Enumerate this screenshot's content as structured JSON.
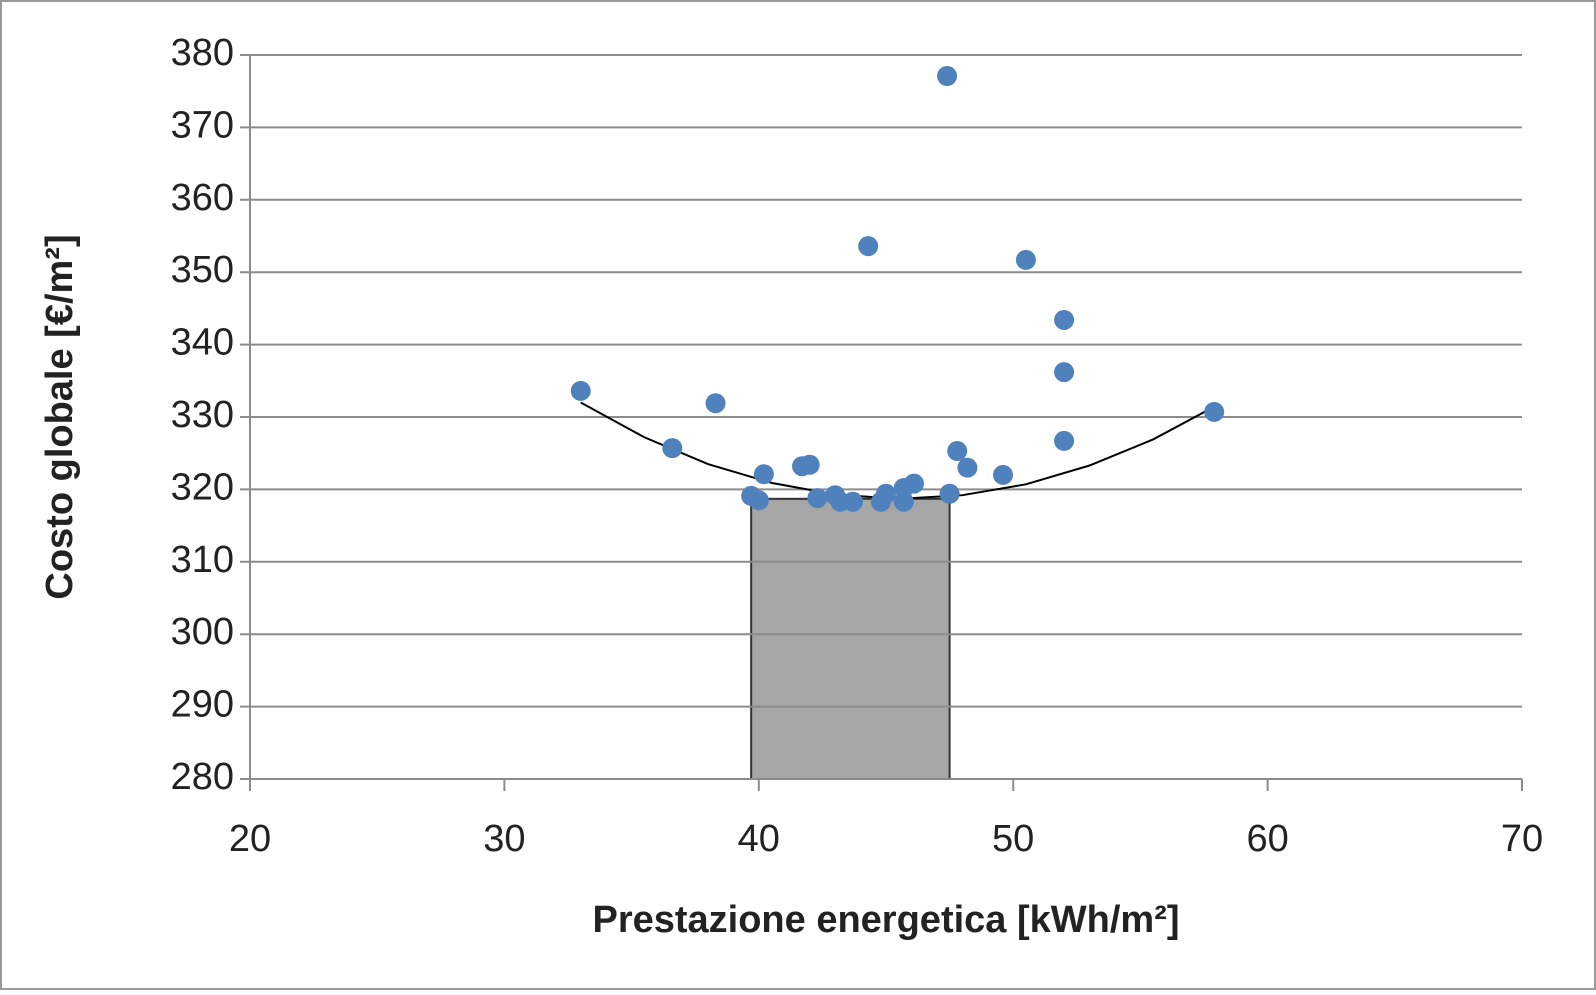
{
  "chart_data": {
    "type": "scatter",
    "x_label": "Prestazione energetica [kWh/m²]",
    "y_label": "Costo globale [€/m²]",
    "x": [
      33.0,
      36.6,
      38.3,
      39.7,
      40.0,
      40.2,
      41.7,
      42.0,
      42.3,
      43.0,
      43.2,
      43.7,
      44.3,
      44.8,
      45.0,
      45.7,
      45.7,
      46.1,
      47.4,
      47.5,
      47.8,
      48.2,
      49.6,
      50.5,
      52.0,
      52.0,
      52.0,
      57.9
    ],
    "values": [
      333.6,
      325.7,
      331.9,
      319.1,
      318.5,
      322.1,
      323.2,
      323.4,
      318.8,
      319.2,
      318.3,
      318.3,
      353.6,
      318.3,
      319.4,
      318.3,
      320.2,
      320.8,
      377.1,
      319.4,
      325.3,
      323.0,
      322.0,
      351.7,
      343.4,
      336.2,
      326.7,
      330.7
    ],
    "color": "#4f81bd",
    "trendline": {
      "x": [
        33,
        35.5,
        38,
        40.5,
        43,
        45.5,
        48,
        50.5,
        53,
        55.5,
        58
      ],
      "values": [
        332.0,
        327.2,
        323.5,
        320.9,
        319.3,
        318.7,
        319.2,
        320.7,
        323.3,
        326.9,
        331.6
      ],
      "color": "#000000"
    },
    "region": {
      "xlim": [
        39.7,
        47.5
      ],
      "ylim": [
        280,
        318.7
      ],
      "color": "#a6a6a6"
    },
    "xlim": [
      20,
      70
    ],
    "xticks": [
      20,
      30,
      40,
      50,
      60,
      70
    ],
    "ylim": [
      280,
      380
    ],
    "yticks": [
      280,
      290,
      300,
      310,
      320,
      330,
      340,
      350,
      360,
      370,
      380
    ],
    "grid": true
  }
}
